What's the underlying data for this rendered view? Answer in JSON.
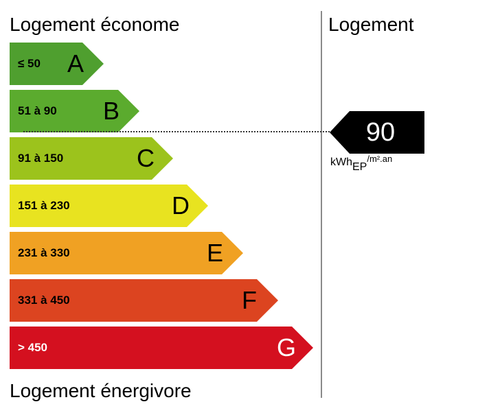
{
  "header": {
    "top_label": "Logement économe",
    "bottom_label": "Logement énergivore",
    "column_label": "Logement"
  },
  "classes": [
    {
      "letter": "A",
      "range": "≤ 50",
      "color": "#4f9f2f"
    },
    {
      "letter": "B",
      "range": "51 à 90",
      "color": "#5bab2e"
    },
    {
      "letter": "C",
      "range": "91 à 150",
      "color": "#9cc31c"
    },
    {
      "letter": "D",
      "range": "151 à 230",
      "color": "#e8e320"
    },
    {
      "letter": "E",
      "range": "231 à 330",
      "color": "#f0a123"
    },
    {
      "letter": "F",
      "range": "331 à 450",
      "color": "#dc4420"
    },
    {
      "letter": "G",
      "range": "> 450",
      "color": "#d4101f"
    }
  ],
  "indicator": {
    "value": "90",
    "unit_main": "kWh",
    "unit_sub": "EP",
    "unit_tail": "/m².an",
    "class": "B"
  }
}
